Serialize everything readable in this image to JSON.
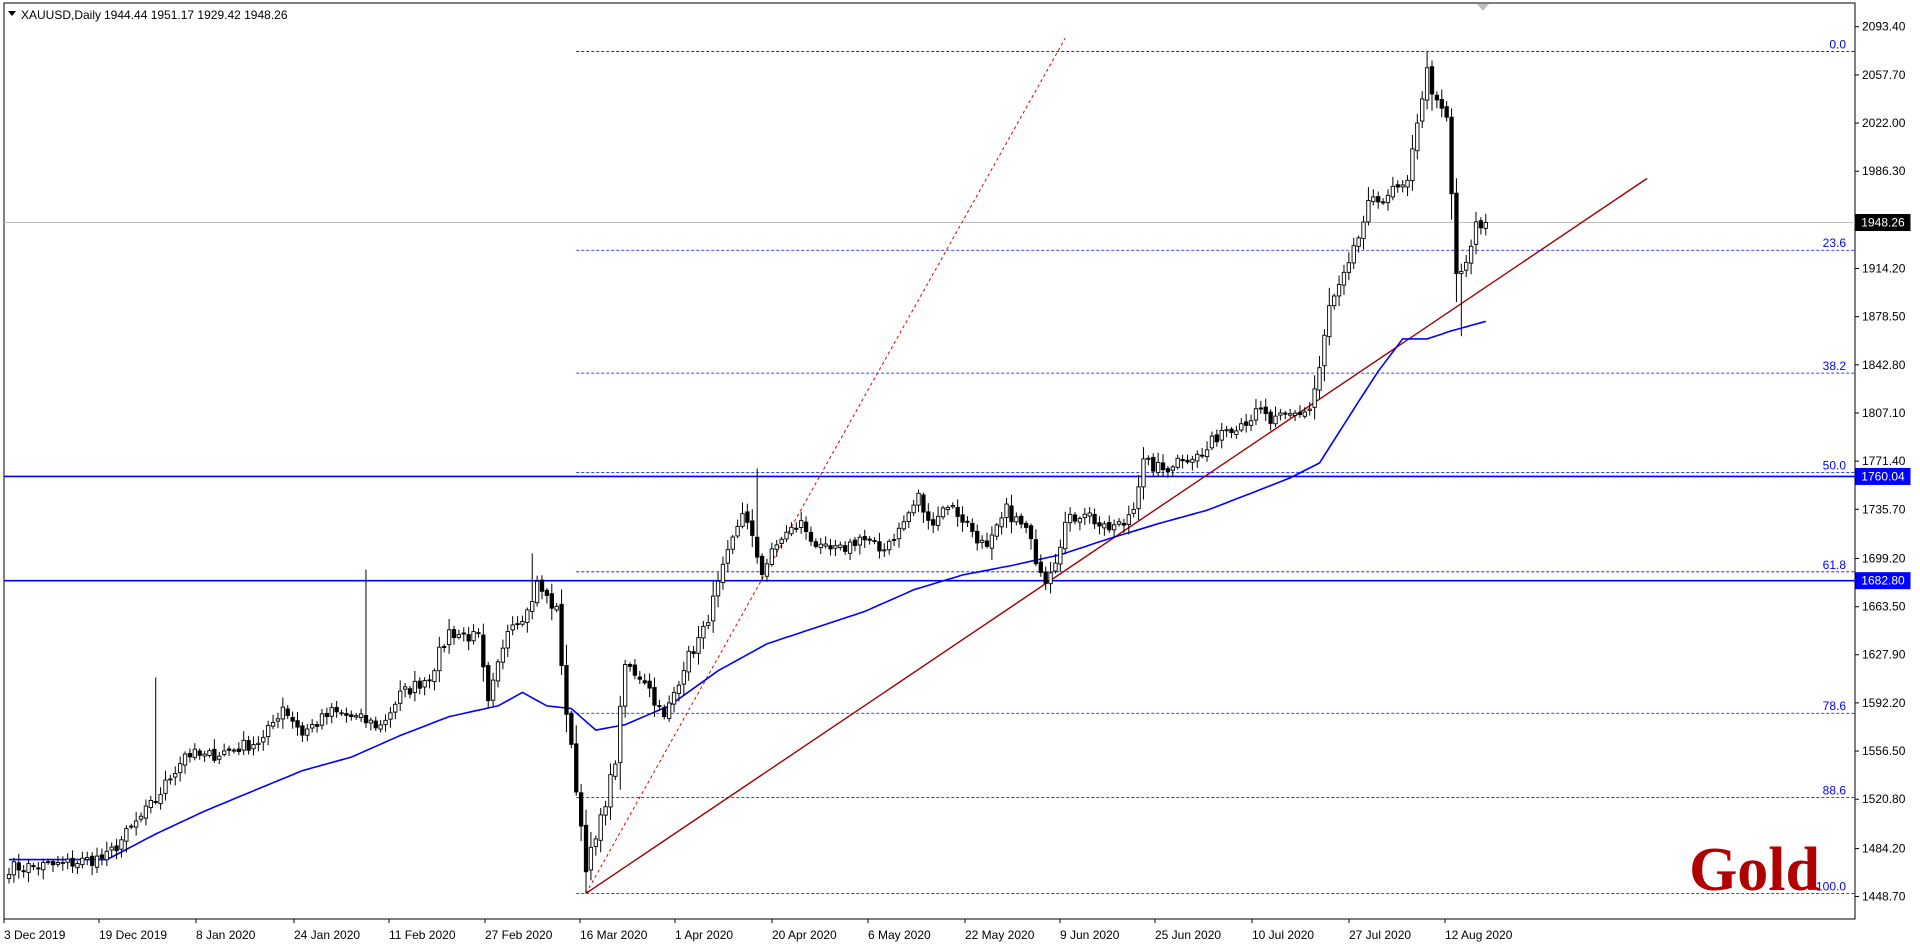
{
  "header": {
    "symbol": "XAUUSD,Daily",
    "ohlc": "1944.44 1951.17 1929.42 1948.26"
  },
  "watermark": {
    "text": "Gold",
    "color": "#b00000"
  },
  "colors": {
    "bull_body": "#ffffff",
    "bear_body": "#000000",
    "candle_outline": "#000000",
    "ma": "#0000ff",
    "fib": "#0000ff",
    "trendline": "#a00000",
    "support": "#0000ff",
    "current_line": "#c0c0c0"
  },
  "chart_data": {
    "type": "candlestick",
    "y_range": [
      1432,
      2111
    ],
    "y_ticks": [
      "2093.40",
      "2057.70",
      "2022.00",
      "1986.30",
      "1914.20",
      "1878.50",
      "1842.80",
      "1807.10",
      "1771.40",
      "1735.70",
      "1699.20",
      "1663.50",
      "1627.90",
      "1592.20",
      "1556.50",
      "1520.80",
      "1484.20",
      "1448.70"
    ],
    "x_labels": [
      "3 Dec 2019",
      "19 Dec 2019",
      "8 Jan 2020",
      "24 Jan 2020",
      "11 Feb 2020",
      "27 Feb 2020",
      "16 Mar 2020",
      "1 Apr 2020",
      "20 Apr 2020",
      "6 May 2020",
      "22 May 2020",
      "9 Jun 2020",
      "25 Jun 2020",
      "10 Jul 2020",
      "27 Jul 2020",
      "12 Aug 2020"
    ],
    "current_price": "1948.26",
    "support_levels": [
      {
        "label": "1760.04",
        "value": 1760.04
      },
      {
        "label": "1682.80",
        "value": 1682.8
      }
    ],
    "fib_high": 2075,
    "fib_low": 1451,
    "fib_levels": [
      {
        "label": "0.0",
        "ratio": 0.0
      },
      {
        "label": "23.6",
        "ratio": 0.236
      },
      {
        "label": "38.2",
        "ratio": 0.382
      },
      {
        "label": "50.0",
        "ratio": 0.5
      },
      {
        "label": "61.8",
        "ratio": 0.618
      },
      {
        "label": "78.6",
        "ratio": 0.786
      },
      {
        "label": "88.6",
        "ratio": 0.886
      },
      {
        "label": "100.0",
        "ratio": 1.0
      }
    ],
    "close_anchors": [
      [
        0,
        1470
      ],
      [
        10,
        1472
      ],
      [
        20,
        1478
      ],
      [
        30,
        1520
      ],
      [
        36,
        1555
      ],
      [
        40,
        1552
      ],
      [
        46,
        1558
      ],
      [
        52,
        1565
      ],
      [
        56,
        1590
      ],
      [
        60,
        1570
      ],
      [
        66,
        1585
      ],
      [
        70,
        1582
      ],
      [
        76,
        1575
      ],
      [
        80,
        1598
      ],
      [
        86,
        1612
      ],
      [
        90,
        1645
      ],
      [
        96,
        1640
      ],
      [
        98,
        1590
      ],
      [
        102,
        1650
      ],
      [
        106,
        1660
      ],
      [
        108,
        1680
      ],
      [
        112,
        1660
      ],
      [
        114,
        1585
      ],
      [
        116,
        1530
      ],
      [
        118,
        1472
      ],
      [
        120,
        1490
      ],
      [
        122,
        1520
      ],
      [
        124,
        1550
      ],
      [
        126,
        1620
      ],
      [
        130,
        1610
      ],
      [
        134,
        1580
      ],
      [
        138,
        1620
      ],
      [
        142,
        1645
      ],
      [
        146,
        1690
      ],
      [
        150,
        1735
      ],
      [
        154,
        1690
      ],
      [
        158,
        1715
      ],
      [
        162,
        1725
      ],
      [
        166,
        1705
      ],
      [
        170,
        1705
      ],
      [
        174,
        1715
      ],
      [
        178,
        1705
      ],
      [
        182,
        1720
      ],
      [
        186,
        1745
      ],
      [
        188,
        1725
      ],
      [
        192,
        1740
      ],
      [
        196,
        1725
      ],
      [
        200,
        1705
      ],
      [
        204,
        1735
      ],
      [
        208,
        1720
      ],
      [
        210,
        1700
      ],
      [
        212,
        1685
      ],
      [
        214,
        1700
      ],
      [
        216,
        1725
      ],
      [
        220,
        1735
      ],
      [
        224,
        1720
      ],
      [
        228,
        1725
      ],
      [
        230,
        1740
      ],
      [
        232,
        1770
      ],
      [
        236,
        1765
      ],
      [
        240,
        1775
      ],
      [
        244,
        1775
      ],
      [
        248,
        1795
      ],
      [
        252,
        1800
      ],
      [
        256,
        1808
      ],
      [
        258,
        1800
      ],
      [
        262,
        1805
      ],
      [
        266,
        1810
      ],
      [
        268,
        1840
      ],
      [
        270,
        1885
      ],
      [
        274,
        1915
      ],
      [
        278,
        1960
      ],
      [
        282,
        1970
      ],
      [
        286,
        1975
      ],
      [
        288,
        2025
      ],
      [
        290,
        2060
      ],
      [
        292,
        2035
      ],
      [
        294,
        2025
      ],
      [
        296,
        1910
      ],
      [
        298,
        1915
      ],
      [
        300,
        1945
      ],
      [
        302,
        1948.26
      ]
    ],
    "ma_anchors": [
      [
        0,
        1476
      ],
      [
        20,
        1476
      ],
      [
        30,
        1495
      ],
      [
        40,
        1512
      ],
      [
        50,
        1527
      ],
      [
        60,
        1542
      ],
      [
        70,
        1552
      ],
      [
        80,
        1568
      ],
      [
        90,
        1582
      ],
      [
        100,
        1590
      ],
      [
        105,
        1600
      ],
      [
        110,
        1590
      ],
      [
        115,
        1588
      ],
      [
        120,
        1572
      ],
      [
        126,
        1576
      ],
      [
        135,
        1590
      ],
      [
        145,
        1616
      ],
      [
        155,
        1636
      ],
      [
        165,
        1648
      ],
      [
        175,
        1660
      ],
      [
        185,
        1676
      ],
      [
        195,
        1687
      ],
      [
        205,
        1694
      ],
      [
        215,
        1702
      ],
      [
        225,
        1714
      ],
      [
        235,
        1725
      ],
      [
        245,
        1735
      ],
      [
        255,
        1749
      ],
      [
        262,
        1759
      ],
      [
        268,
        1770
      ],
      [
        275,
        1810
      ],
      [
        280,
        1838
      ],
      [
        285,
        1862
      ],
      [
        290,
        1862
      ],
      [
        295,
        1868
      ],
      [
        302,
        1875
      ]
    ],
    "trendline": {
      "x1": 118,
      "y1": 1451,
      "x2": 335,
      "y2": 1981
    },
    "fib_fan": {
      "x1": 118,
      "y1": 1451,
      "x2": 216,
      "y2": 2085
    },
    "fib_span_x": [
      116,
      380
    ]
  }
}
